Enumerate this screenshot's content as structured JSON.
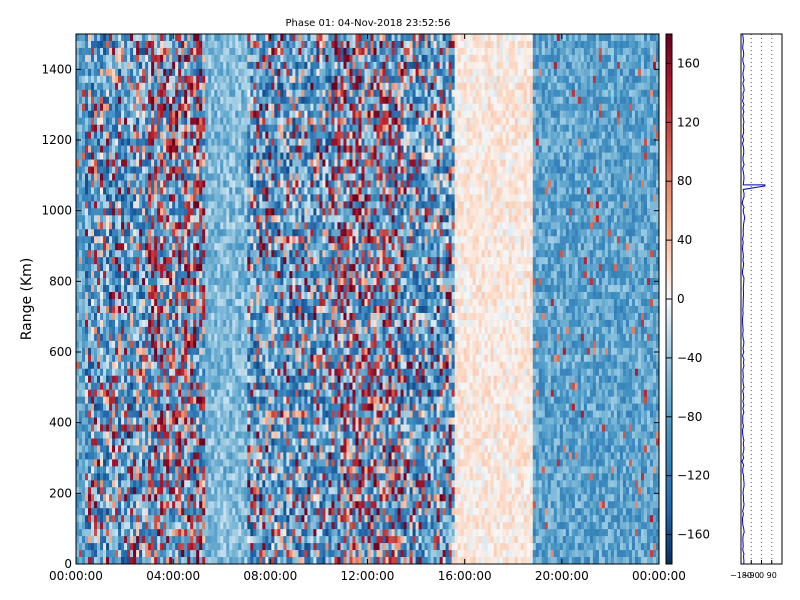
{
  "chart_data": {
    "type": "heatmap",
    "title": "Phase 01: 04-Nov-2018 23:52:56",
    "xlabel": "",
    "ylabel": "Range (Km)",
    "xlim_hours": [
      0,
      24
    ],
    "ylim": [
      0,
      1500
    ],
    "x_ticks": [
      "00:00:00",
      "04:00:00",
      "08:00:00",
      "12:00:00",
      "16:00:00",
      "20:00:00",
      "00:00:00"
    ],
    "y_ticks": [
      0,
      200,
      400,
      600,
      800,
      1000,
      1200,
      1400
    ],
    "colorbar": {
      "colormap": "RdBu_r",
      "range": [
        -180,
        180
      ],
      "ticks": [
        "160",
        "120",
        "80",
        "40",
        "0",
        "−40",
        "−80",
        "−120",
        "−160"
      ]
    },
    "time_blocks": [
      {
        "start_hour": 0.0,
        "end_hour": 0.4,
        "level": "blue"
      },
      {
        "start_hour": 0.4,
        "end_hour": 3.0,
        "level": "mixed"
      },
      {
        "start_hour": 3.0,
        "end_hour": 5.3,
        "level": "red-mixed"
      },
      {
        "start_hour": 5.3,
        "end_hour": 7.0,
        "level": "light-blue"
      },
      {
        "start_hour": 7.0,
        "end_hour": 10.5,
        "level": "mixed"
      },
      {
        "start_hour": 10.5,
        "end_hour": 13.3,
        "level": "red-mixed"
      },
      {
        "start_hour": 13.3,
        "end_hour": 15.6,
        "level": "mixed"
      },
      {
        "start_hour": 15.6,
        "end_hour": 18.8,
        "level": "pale"
      },
      {
        "start_hour": 18.8,
        "end_hour": 24.0,
        "level": "blue"
      }
    ],
    "side_panel": {
      "type": "line",
      "x_ticks": [
        "−180",
        "−90",
        "0",
        "90"
      ],
      "xlim": [
        -180,
        180
      ],
      "ylim": [
        0,
        1500
      ],
      "spike_range_km": 1070,
      "spike_value": 30,
      "base_value": -160
    }
  }
}
